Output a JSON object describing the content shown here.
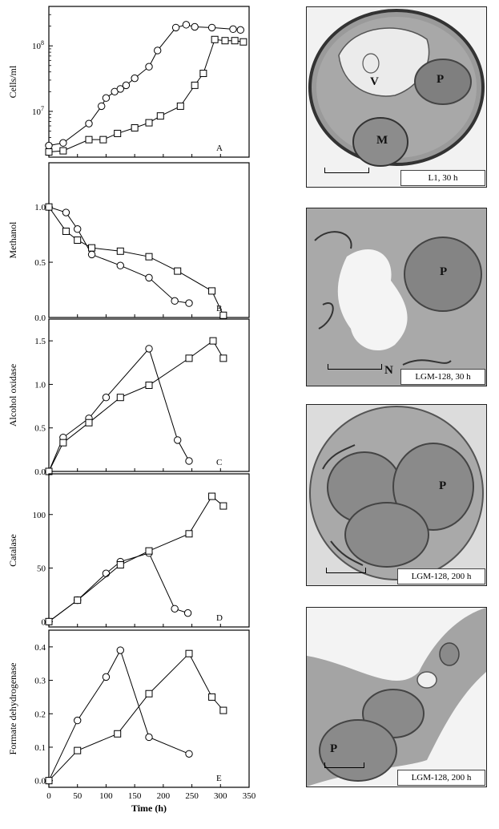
{
  "chart_data": [
    {
      "panel": "A",
      "type": "line",
      "ylabel": "Cells/ml",
      "yscale": "log",
      "ylim": [
        2000000,
        400000000
      ],
      "xlim": [
        0,
        350
      ],
      "yticks": [
        {
          "value": 10000000,
          "label": "10^7"
        },
        {
          "value": 100000000,
          "label": "10^8"
        }
      ],
      "series": [
        {
          "marker": "circle",
          "x": [
            0,
            25,
            70,
            92,
            100,
            115,
            125,
            135,
            150,
            175,
            190,
            222,
            240,
            255,
            285,
            322,
            335
          ],
          "y": [
            3000000,
            3300000,
            6500000,
            12000000,
            16000000,
            20000000,
            22000000,
            25000000,
            32000000,
            48000000,
            85000000,
            190000000,
            210000000,
            195000000,
            190000000,
            180000000,
            175000000
          ]
        },
        {
          "marker": "square",
          "x": [
            0,
            25,
            70,
            95,
            120,
            150,
            175,
            195,
            230,
            255,
            270,
            290,
            308,
            325,
            340
          ],
          "y": [
            2400000,
            2500000,
            3700000,
            3700000,
            4600000,
            5600000,
            6700000,
            8500000,
            12000000,
            25000000,
            38000000,
            125000000,
            120000000,
            120000000,
            115000000
          ]
        }
      ]
    },
    {
      "panel": "B",
      "type": "line",
      "ylabel": "Methanol",
      "ylim": [
        0,
        1.4
      ],
      "xlim": [
        0,
        350
      ],
      "yticks": [
        {
          "value": 0,
          "label": "0.0"
        },
        {
          "value": 0.5,
          "label": "0.5"
        },
        {
          "value": 1,
          "label": "1.0"
        }
      ],
      "series": [
        {
          "marker": "circle",
          "x": [
            0,
            30,
            50,
            75,
            125,
            175,
            220,
            245
          ],
          "y": [
            1.0,
            0.95,
            0.8,
            0.57,
            0.47,
            0.36,
            0.15,
            0.13
          ]
        },
        {
          "marker": "square",
          "x": [
            0,
            30,
            50,
            75,
            125,
            175,
            225,
            285,
            305
          ],
          "y": [
            1.0,
            0.78,
            0.7,
            0.63,
            0.6,
            0.55,
            0.42,
            0.24,
            0.02
          ]
        }
      ]
    },
    {
      "panel": "C",
      "type": "line",
      "ylabel": "Alcohol oxidase",
      "ylim": [
        0,
        1.75
      ],
      "xlim": [
        0,
        350
      ],
      "yticks": [
        {
          "value": 0,
          "label": "0.0"
        },
        {
          "value": 0.5,
          "label": "0.5"
        },
        {
          "value": 1,
          "label": "1.0"
        },
        {
          "value": 1.5,
          "label": "1.5"
        }
      ],
      "series": [
        {
          "marker": "circle",
          "x": [
            0,
            25,
            70,
            100,
            175,
            225,
            245
          ],
          "y": [
            0,
            0.39,
            0.61,
            0.85,
            1.41,
            0.36,
            0.12
          ]
        },
        {
          "marker": "square",
          "x": [
            0,
            25,
            70,
            125,
            175,
            245,
            287,
            305
          ],
          "y": [
            0,
            0.33,
            0.56,
            0.85,
            0.99,
            1.3,
            1.5,
            1.3
          ]
        }
      ]
    },
    {
      "panel": "D",
      "type": "line",
      "ylabel": "Catalase",
      "ylim": [
        -5,
        138
      ],
      "xlim": [
        0,
        350
      ],
      "yticks": [
        {
          "value": 0,
          "label": "0"
        },
        {
          "value": 50,
          "label": "50"
        },
        {
          "value": 100,
          "label": "100"
        }
      ],
      "series": [
        {
          "marker": "circle",
          "x": [
            0,
            50,
            100,
            125,
            175,
            220,
            243
          ],
          "y": [
            0,
            20,
            45,
            56,
            64,
            12,
            8
          ]
        },
        {
          "marker": "square",
          "x": [
            0,
            50,
            125,
            175,
            245,
            285,
            305
          ],
          "y": [
            0,
            20,
            53,
            66,
            82,
            117,
            108
          ]
        }
      ]
    },
    {
      "panel": "E",
      "type": "line",
      "ylabel": "Formate dehydrogenase",
      "xlabel": "Time (h)",
      "ylim": [
        -0.02,
        0.45
      ],
      "xlim": [
        0,
        350
      ],
      "xticks": [
        0,
        50,
        100,
        150,
        200,
        250,
        300,
        350
      ],
      "yticks": [
        {
          "value": 0,
          "label": "0.0"
        },
        {
          "value": 0.1,
          "label": "0.1"
        },
        {
          "value": 0.2,
          "label": "0.2"
        },
        {
          "value": 0.3,
          "label": "0.3"
        },
        {
          "value": 0.4,
          "label": "0.4"
        }
      ],
      "series": [
        {
          "marker": "circle",
          "x": [
            0,
            50,
            100,
            125,
            175,
            245
          ],
          "y": [
            0,
            0.18,
            0.31,
            0.39,
            0.13,
            0.08
          ]
        },
        {
          "marker": "square",
          "x": [
            0,
            50,
            120,
            175,
            245,
            285,
            305
          ],
          "y": [
            0,
            0.09,
            0.14,
            0.26,
            0.38,
            0.25,
            0.21
          ]
        }
      ]
    }
  ],
  "micrographs": [
    {
      "caption": "L1, 30 h",
      "labels": [
        "V",
        "P",
        "M"
      ]
    },
    {
      "caption": "LGM-128, 30 h",
      "labels": [
        "P",
        "N"
      ]
    },
    {
      "caption": "LGM-128, 200 h",
      "labels": [
        "P"
      ]
    },
    {
      "caption": "LGM-128, 200 h",
      "labels": [
        "P"
      ]
    }
  ]
}
